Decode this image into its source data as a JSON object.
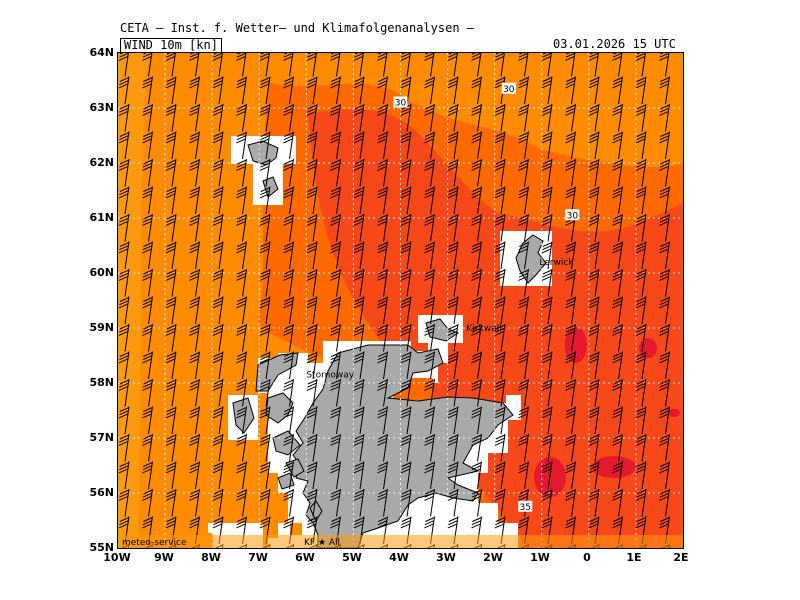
{
  "header": {
    "institute": "CETA – Inst. f. Wetter– und Klimafolgenanalysen –",
    "field_label": "WIND 10m [kn]",
    "valid_time": "03.01.2026 15 UTC"
  },
  "axes": {
    "lat_labels": [
      "64N",
      "63N",
      "62N",
      "61N",
      "60N",
      "59N",
      "58N",
      "57N",
      "56N",
      "55N"
    ],
    "lon_labels": [
      "10W",
      "9W",
      "8W",
      "7W",
      "6W",
      "5W",
      "4W",
      "3W",
      "2W",
      "1W",
      "0",
      "1E",
      "2E"
    ]
  },
  "isotach_labels": [
    {
      "text": "30",
      "lon": -4.0,
      "lat": 63.1
    },
    {
      "text": "30",
      "lon": -1.7,
      "lat": 63.35
    },
    {
      "text": "30",
      "lon": -0.35,
      "lat": 61.05
    },
    {
      "text": "35",
      "lon": -1.35,
      "lat": 55.75
    }
  ],
  "place_labels": [
    {
      "text": "Lerwick",
      "lon": -1.05,
      "lat": 60.15
    },
    {
      "text": "Kirkwall",
      "lon": -2.6,
      "lat": 58.95
    },
    {
      "text": "Stornoway",
      "lon": -6.0,
      "lat": 58.1
    }
  ],
  "footer": {
    "provider": "meteo-service",
    "credit": "KF ★ All"
  },
  "colors": {
    "wind_25_30": "#FF8C00",
    "wind_30_35": "#FF6A00",
    "wind_35_40": "#F7481A",
    "wind_40_plus": "#E5182D",
    "land": "#A9A9A9",
    "masked": "#FFFFFF"
  }
}
